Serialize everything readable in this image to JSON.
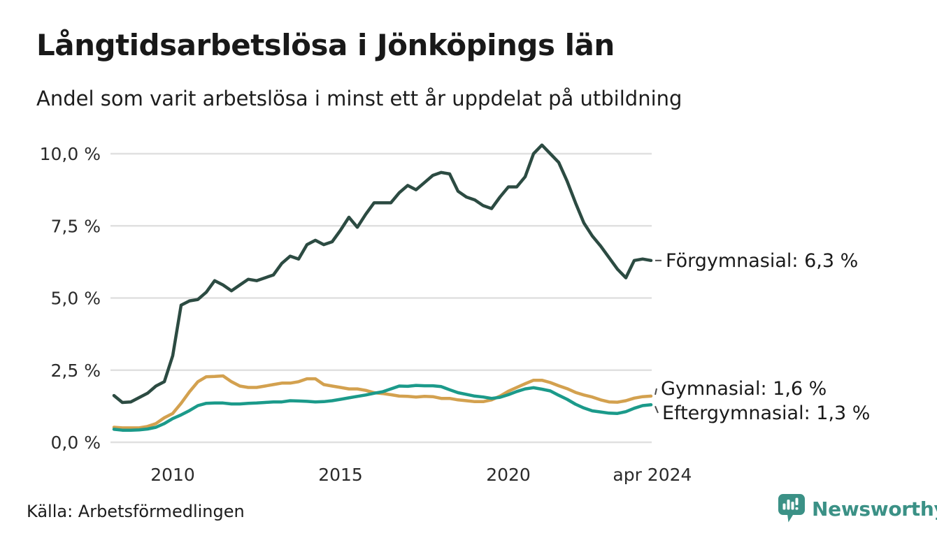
{
  "header": {
    "title": "Långtidsarbetslösa i Jönköpings län",
    "subtitle": "Andel som varit arbetslösa i minst ett år uppdelat på utbildning"
  },
  "footer": {
    "source": "Källa: Arbetsförmedlingen",
    "brand_name": "Newsworthy",
    "brand_color": "#3b9186"
  },
  "chart_data": {
    "type": "line",
    "title": "Långtidsarbetslösa i Jönköpings län",
    "subtitle": "Andel som varit arbetslösa i minst ett år uppdelat på utbildning",
    "unit": "%",
    "decimal_style": "comma",
    "grid": true,
    "grid_color": "#e0e0e0",
    "x_range": [
      2008.1,
      2024.4
    ],
    "y_range": [
      0,
      10.45
    ],
    "x_ticks": [
      {
        "v": 2010,
        "label": "2010"
      },
      {
        "v": 2015,
        "label": "2015"
      },
      {
        "v": 2020,
        "label": "2020"
      },
      {
        "v": 2024.29,
        "label": "apr 2024"
      }
    ],
    "y_ticks": [
      {
        "v": 0,
        "label": "0,0 %"
      },
      {
        "v": 2.5,
        "label": "2,5 %"
      },
      {
        "v": 5,
        "label": "5,0 %"
      },
      {
        "v": 7.5,
        "label": "7,5 %"
      },
      {
        "v": 10,
        "label": "10,0 %"
      }
    ],
    "x": [
      2008.25,
      2008.5,
      2008.75,
      2009,
      2009.25,
      2009.5,
      2009.75,
      2010,
      2010.25,
      2010.5,
      2010.75,
      2011,
      2011.25,
      2011.5,
      2011.75,
      2012,
      2012.25,
      2012.5,
      2012.75,
      2013,
      2013.25,
      2013.5,
      2013.75,
      2014,
      2014.25,
      2014.5,
      2014.75,
      2015,
      2015.25,
      2015.5,
      2015.75,
      2016,
      2016.25,
      2016.5,
      2016.75,
      2017,
      2017.25,
      2017.5,
      2017.75,
      2018,
      2018.25,
      2018.5,
      2018.75,
      2019,
      2019.25,
      2019.5,
      2019.75,
      2020,
      2020.25,
      2020.5,
      2020.75,
      2021,
      2021.25,
      2021.5,
      2021.75,
      2022,
      2022.25,
      2022.5,
      2022.75,
      2023,
      2023.25,
      2023.5,
      2023.75,
      2024,
      2024.25
    ],
    "series": [
      {
        "name": "Förgymnasial",
        "color": "#2c4b42",
        "end_label": "Förgymnasial: 6,3 %",
        "end_value_label": "6,3 %",
        "values": [
          1.62,
          1.38,
          1.4,
          1.55,
          1.7,
          1.95,
          2.1,
          3.0,
          4.75,
          4.9,
          4.95,
          5.2,
          5.6,
          5.45,
          5.25,
          5.45,
          5.65,
          5.6,
          5.7,
          5.8,
          6.2,
          6.45,
          6.35,
          6.85,
          7.0,
          6.85,
          6.95,
          7.35,
          7.8,
          7.45,
          7.9,
          8.3,
          8.3,
          8.3,
          8.65,
          8.9,
          8.75,
          9.0,
          9.25,
          9.35,
          9.3,
          8.7,
          8.5,
          8.4,
          8.2,
          8.1,
          8.5,
          8.85,
          8.85,
          9.2,
          10.0,
          10.3,
          10.0,
          9.7,
          9.05,
          8.3,
          7.6,
          7.15,
          6.8,
          6.4,
          6.0,
          5.7,
          6.3,
          6.35,
          6.3
        ]
      },
      {
        "name": "Gymnasial",
        "color": "#d3a14f",
        "end_label": "Gymnasial: 1,6 %",
        "end_value_label": "1,6 %",
        "values": [
          0.52,
          0.5,
          0.5,
          0.5,
          0.55,
          0.65,
          0.85,
          1.0,
          1.35,
          1.75,
          2.1,
          2.27,
          2.28,
          2.3,
          2.1,
          1.95,
          1.9,
          1.9,
          1.95,
          2.0,
          2.05,
          2.05,
          2.1,
          2.2,
          2.2,
          2.0,
          1.95,
          1.9,
          1.85,
          1.85,
          1.8,
          1.72,
          1.69,
          1.65,
          1.6,
          1.59,
          1.57,
          1.59,
          1.58,
          1.52,
          1.52,
          1.47,
          1.44,
          1.41,
          1.41,
          1.47,
          1.6,
          1.77,
          1.9,
          2.03,
          2.15,
          2.15,
          2.07,
          1.96,
          1.86,
          1.73,
          1.64,
          1.57,
          1.47,
          1.4,
          1.39,
          1.44,
          1.53,
          1.58,
          1.6
        ]
      },
      {
        "name": "Eftergymnasial",
        "color": "#1b9a8a",
        "end_label": "Eftergymnasial: 1,3 %",
        "end_value_label": "1,3 %",
        "values": [
          0.45,
          0.42,
          0.42,
          0.43,
          0.46,
          0.52,
          0.65,
          0.82,
          0.95,
          1.1,
          1.27,
          1.35,
          1.36,
          1.36,
          1.33,
          1.33,
          1.35,
          1.36,
          1.38,
          1.4,
          1.4,
          1.44,
          1.43,
          1.42,
          1.4,
          1.41,
          1.44,
          1.49,
          1.54,
          1.59,
          1.64,
          1.7,
          1.75,
          1.85,
          1.95,
          1.94,
          1.97,
          1.96,
          1.96,
          1.93,
          1.82,
          1.72,
          1.66,
          1.6,
          1.57,
          1.52,
          1.56,
          1.65,
          1.76,
          1.85,
          1.89,
          1.84,
          1.78,
          1.63,
          1.49,
          1.32,
          1.19,
          1.09,
          1.05,
          1.01,
          1.0,
          1.06,
          1.18,
          1.27,
          1.3
        ]
      }
    ]
  }
}
